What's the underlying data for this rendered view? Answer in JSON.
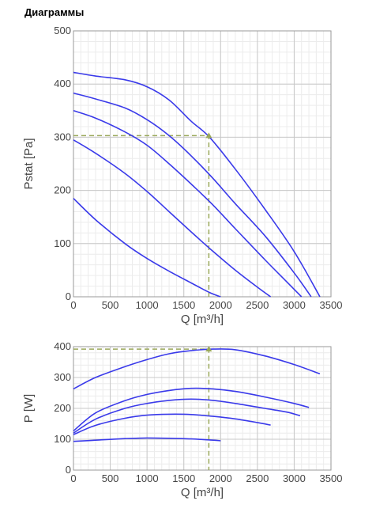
{
  "page_title": "Диаграммы",
  "colors": {
    "curve": "#3a3aea",
    "operating_point": "#9aa85a",
    "grid_major": "#c8c8c8",
    "grid_minor": "#ececec",
    "frame": "#9a9a9a"
  },
  "chart_data": [
    {
      "type": "line",
      "title": "",
      "xlabel": "Q [m³/h]",
      "ylabel": "Pstat [Pa]",
      "xlim": [
        0,
        3500
      ],
      "ylim": [
        0,
        500
      ],
      "x_ticks": [
        0,
        500,
        1000,
        1500,
        2000,
        2500,
        3000,
        3500
      ],
      "y_ticks": [
        0,
        100,
        200,
        300,
        400,
        500
      ],
      "grid": true,
      "series": [
        {
          "points": [
            [
              0,
              422
            ],
            [
              300,
              415
            ],
            [
              700,
              408
            ],
            [
              1000,
              395
            ],
            [
              1300,
              370
            ],
            [
              1600,
              330
            ],
            [
              1850,
              300
            ],
            [
              2200,
              240
            ],
            [
              2600,
              165
            ],
            [
              3000,
              85
            ],
            [
              3350,
              0
            ]
          ]
        },
        {
          "points": [
            [
              0,
              383
            ],
            [
              300,
              372
            ],
            [
              700,
              355
            ],
            [
              1000,
              333
            ],
            [
              1300,
              303
            ],
            [
              1600,
              265
            ],
            [
              1900,
              222
            ],
            [
              2200,
              175
            ],
            [
              2600,
              115
            ],
            [
              3000,
              45
            ],
            [
              3230,
              0
            ]
          ]
        },
        {
          "points": [
            [
              0,
              350
            ],
            [
              300,
              336
            ],
            [
              700,
              310
            ],
            [
              1000,
              285
            ],
            [
              1300,
              250
            ],
            [
              1600,
              212
            ],
            [
              1900,
              172
            ],
            [
              2200,
              128
            ],
            [
              2600,
              70
            ],
            [
              2900,
              28
            ],
            [
              3100,
              0
            ]
          ]
        },
        {
          "points": [
            [
              0,
              295
            ],
            [
              300,
              270
            ],
            [
              700,
              232
            ],
            [
              1000,
              198
            ],
            [
              1300,
              160
            ],
            [
              1600,
              122
            ],
            [
              1900,
              85
            ],
            [
              2200,
              50
            ],
            [
              2500,
              18
            ],
            [
              2680,
              0
            ]
          ]
        },
        {
          "points": [
            [
              0,
              185
            ],
            [
              300,
              145
            ],
            [
              700,
              100
            ],
            [
              1000,
              72
            ],
            [
              1300,
              48
            ],
            [
              1600,
              26
            ],
            [
              1850,
              8
            ],
            [
              2000,
              0
            ]
          ]
        }
      ],
      "operating_point": {
        "x": 1840,
        "y": 303
      }
    },
    {
      "type": "line",
      "title": "",
      "xlabel": "Q [m³/h]",
      "ylabel": "P [W]",
      "xlim": [
        0,
        3500
      ],
      "ylim": [
        0,
        400
      ],
      "x_ticks": [
        0,
        500,
        1000,
        1500,
        2000,
        2500,
        3000,
        3500
      ],
      "y_ticks": [
        0,
        100,
        200,
        300,
        400
      ],
      "grid": true,
      "series": [
        {
          "points": [
            [
              0,
              263
            ],
            [
              300,
              300
            ],
            [
              700,
              335
            ],
            [
              1000,
              358
            ],
            [
              1300,
              377
            ],
            [
              1600,
              387
            ],
            [
              1900,
              392
            ],
            [
              2200,
              390
            ],
            [
              2600,
              370
            ],
            [
              3000,
              342
            ],
            [
              3350,
              312
            ]
          ]
        },
        {
          "points": [
            [
              0,
              127
            ],
            [
              300,
              185
            ],
            [
              700,
              225
            ],
            [
              1000,
              245
            ],
            [
              1300,
              258
            ],
            [
              1600,
              265
            ],
            [
              1900,
              263
            ],
            [
              2200,
              255
            ],
            [
              2600,
              237
            ],
            [
              3000,
              216
            ],
            [
              3200,
              203
            ]
          ]
        },
        {
          "points": [
            [
              0,
              120
            ],
            [
              300,
              165
            ],
            [
              700,
              200
            ],
            [
              1000,
              216
            ],
            [
              1300,
              226
            ],
            [
              1600,
              230
            ],
            [
              1900,
              226
            ],
            [
              2200,
              216
            ],
            [
              2600,
              200
            ],
            [
              2900,
              188
            ],
            [
              3080,
              176
            ]
          ]
        },
        {
          "points": [
            [
              0,
              115
            ],
            [
              300,
              145
            ],
            [
              700,
              168
            ],
            [
              1000,
              178
            ],
            [
              1300,
              181
            ],
            [
              1600,
              180
            ],
            [
              1900,
              174
            ],
            [
              2200,
              166
            ],
            [
              2500,
              154
            ],
            [
              2680,
              146
            ]
          ]
        },
        {
          "points": [
            [
              0,
              93
            ],
            [
              300,
              97
            ],
            [
              700,
              102
            ],
            [
              1000,
              104
            ],
            [
              1300,
              103
            ],
            [
              1600,
              101
            ],
            [
              1900,
              97
            ],
            [
              2000,
              95
            ]
          ]
        }
      ],
      "operating_point": {
        "x": 1840,
        "y": 392
      }
    }
  ]
}
